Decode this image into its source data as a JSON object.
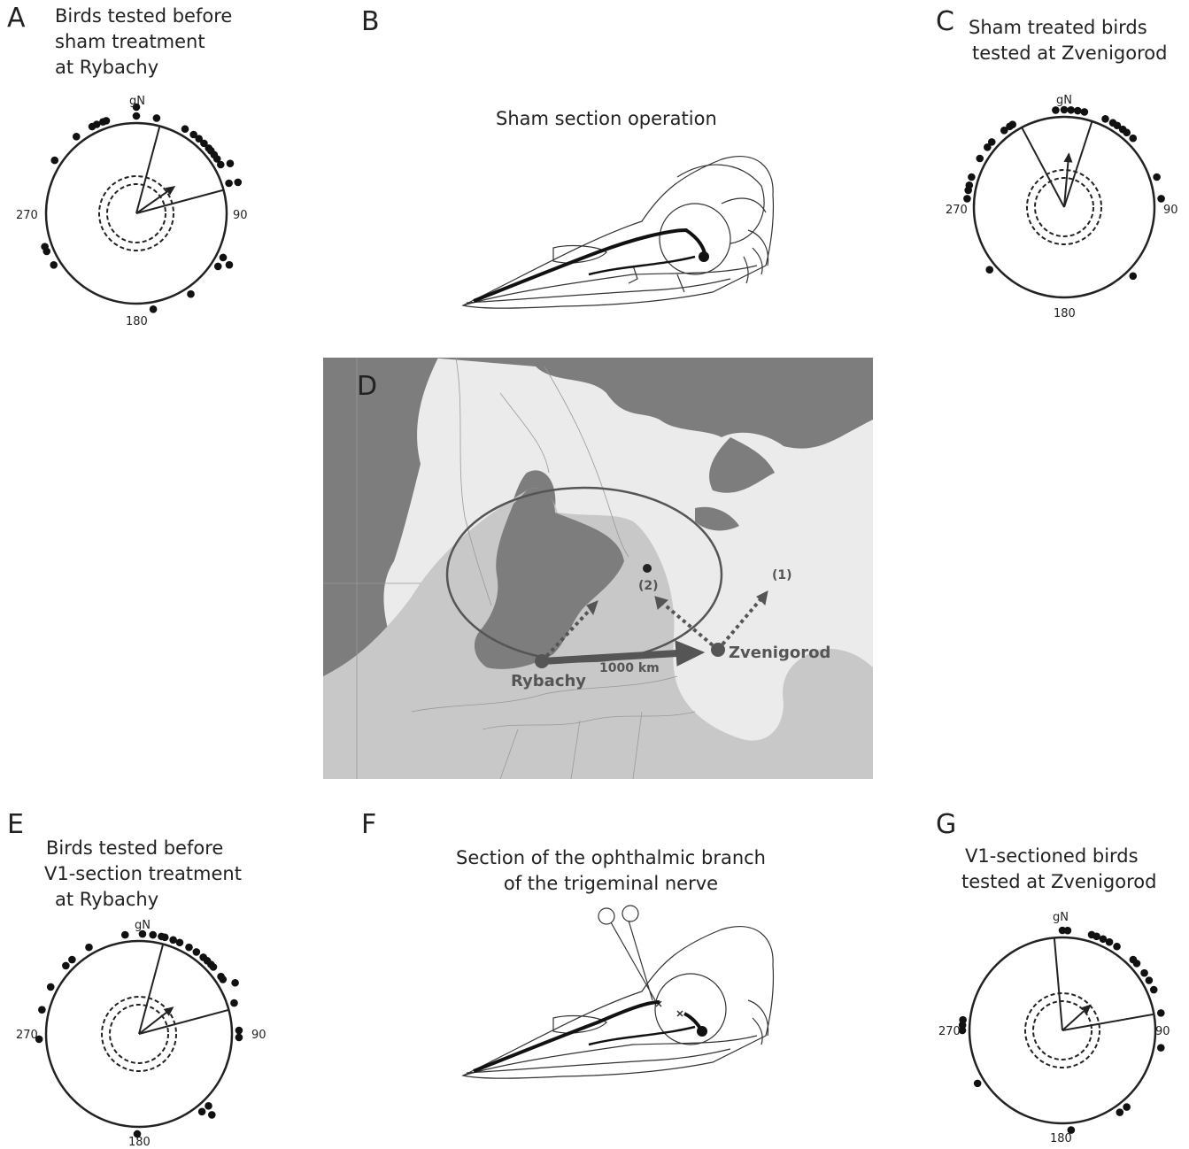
{
  "panels": {
    "a": {
      "letter": "A",
      "title": [
        "Birds tested before",
        "sham treatment",
        "at Rybachy"
      ]
    },
    "b": {
      "letter": "B",
      "title": "Sham section operation"
    },
    "c": {
      "letter": "C",
      "title": [
        "Sham treated birds",
        "tested at Zvenigorod"
      ]
    },
    "d": {
      "letter": "D"
    },
    "e": {
      "letter": "E",
      "title": [
        "Birds tested before",
        "V1-section treatment",
        "at Rybachy"
      ]
    },
    "f": {
      "letter": "F",
      "title": [
        "Section of the ophthalmic branch",
        "of the trigeminal nerve"
      ]
    },
    "g": {
      "letter": "G",
      "title": [
        "V1-sectioned birds",
        "tested at Zvenigorod"
      ]
    }
  },
  "compass_labels": {
    "north": "gN",
    "east": "90",
    "south": "180",
    "west": "270"
  },
  "map": {
    "places": {
      "origin": "Rybachy",
      "destination": "Zvenigorod"
    },
    "distance": "1000 km",
    "markers": {
      "one": "(1)",
      "two": "(2)"
    }
  },
  "colors": {
    "ink": "#222222",
    "sea": "#7d7d7d",
    "land_light": "#ebebeb",
    "land_mid": "#c8c8c8",
    "zone": "#b5b5b5"
  }
}
